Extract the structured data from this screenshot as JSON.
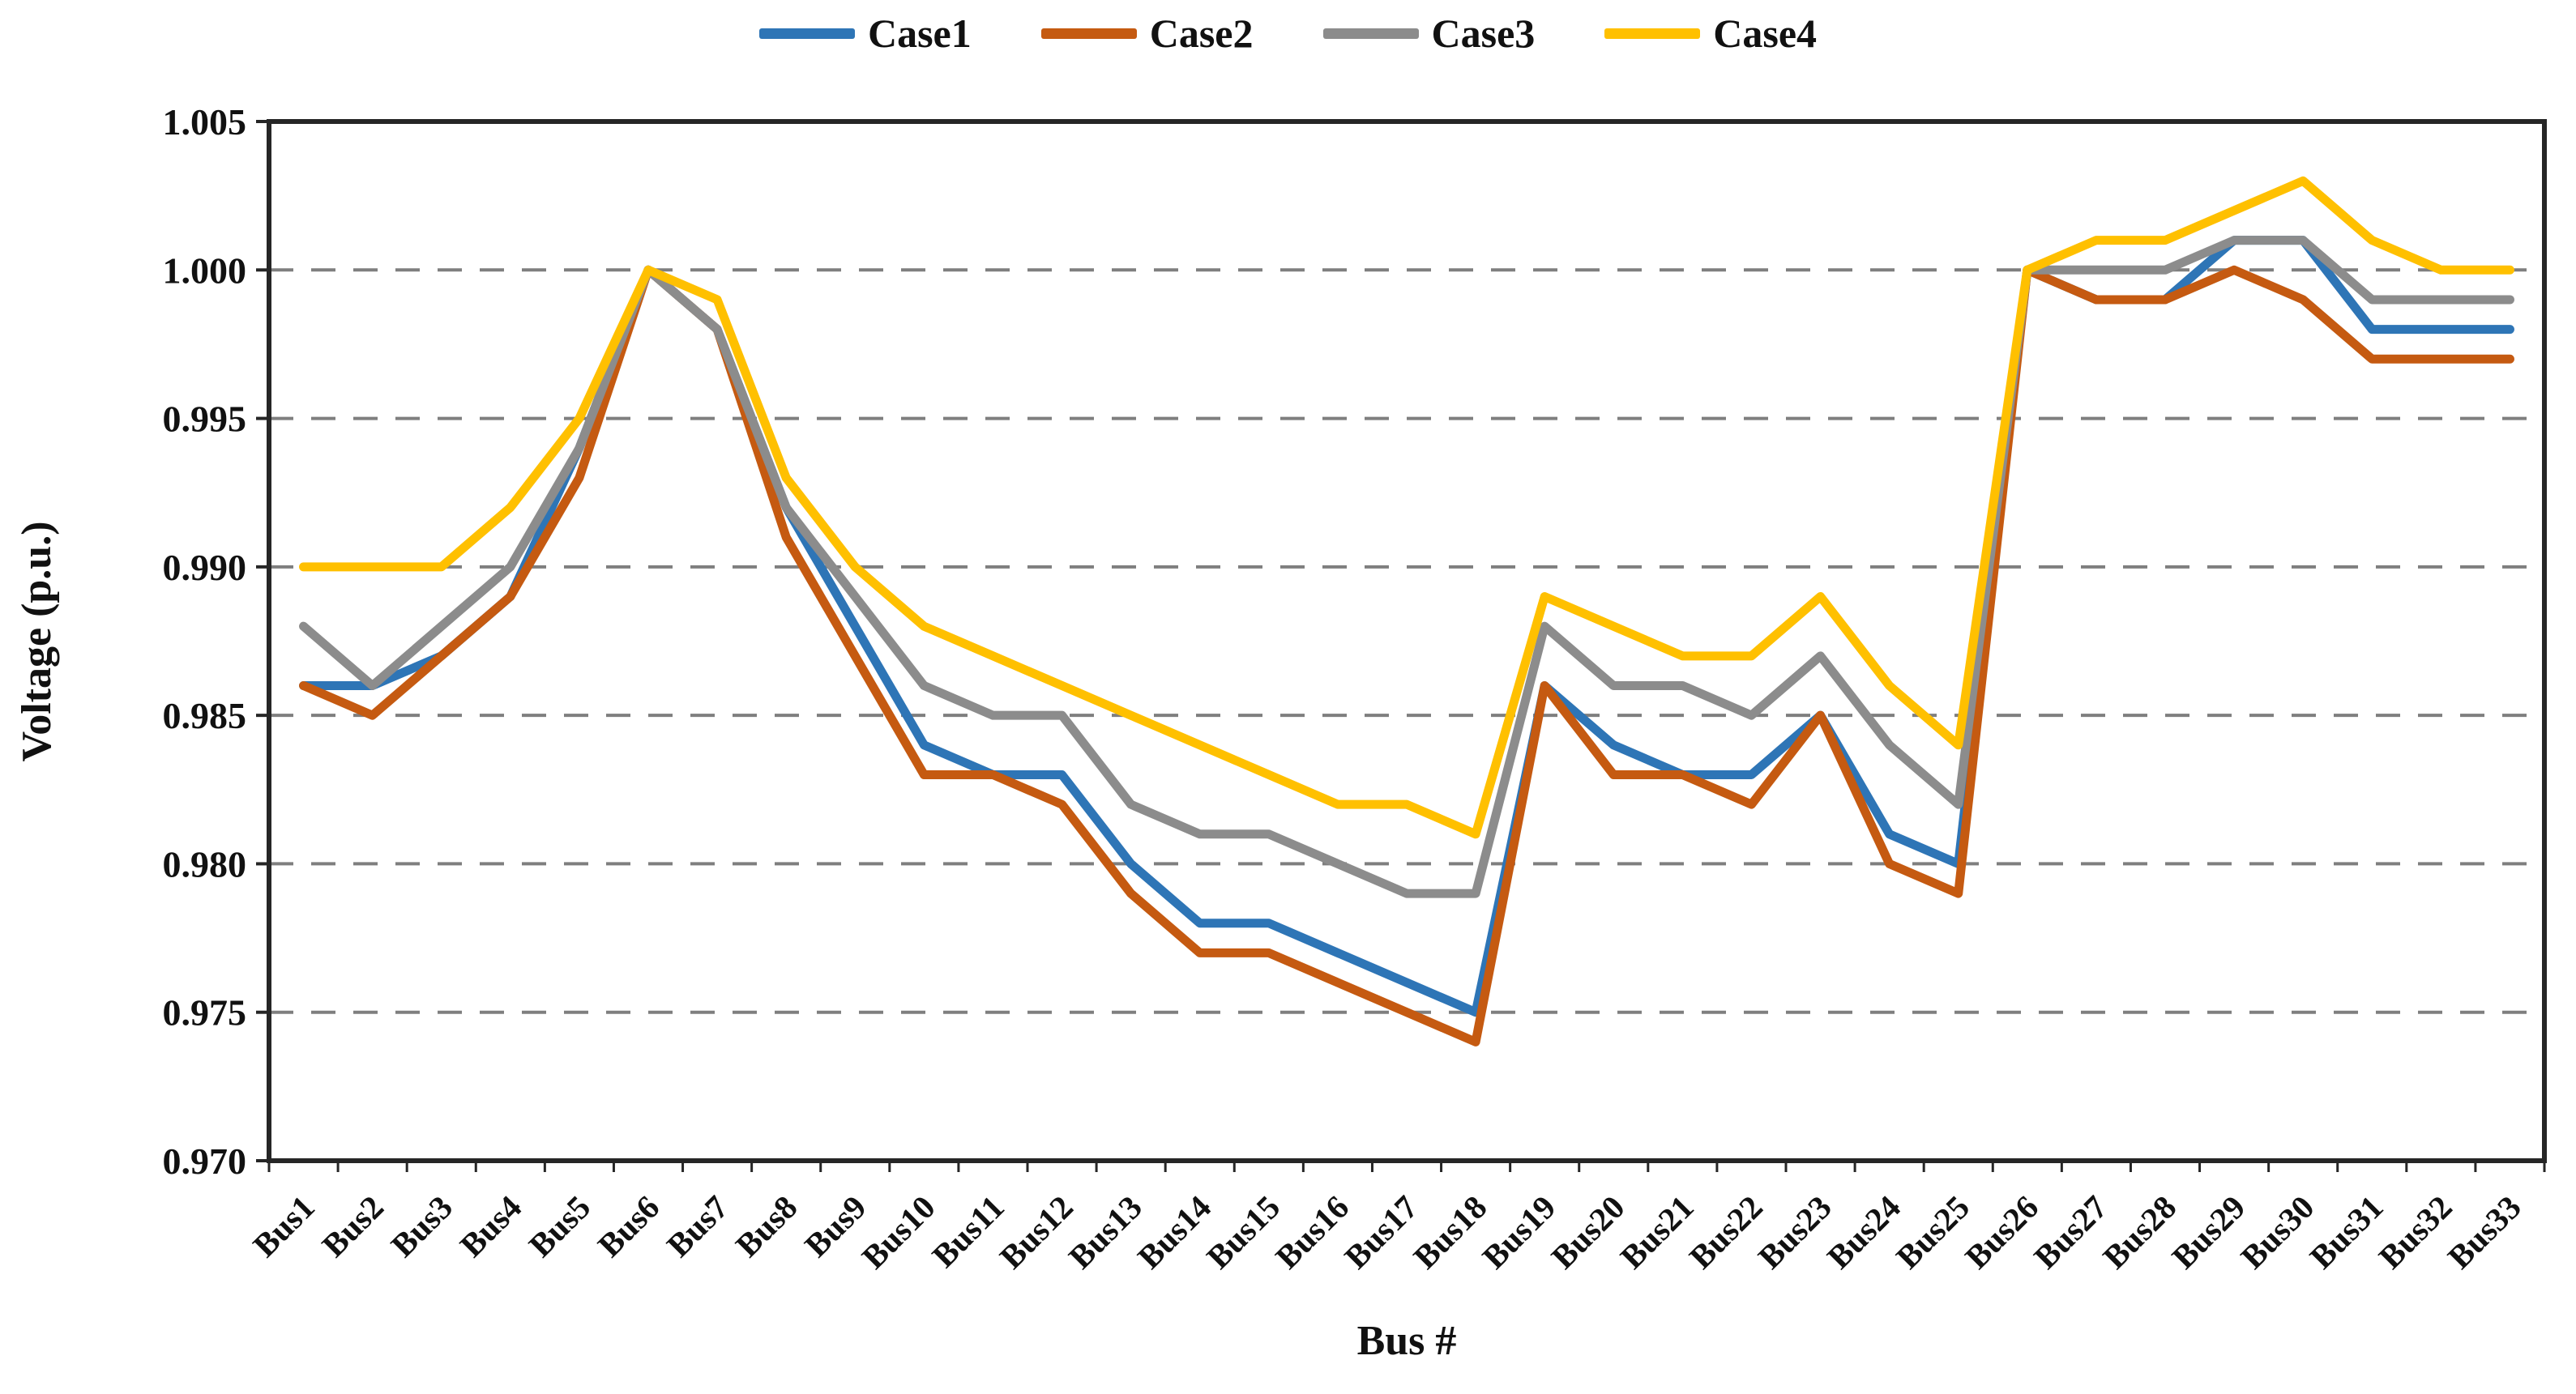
{
  "chart_data": {
    "type": "line",
    "title": "",
    "xlabel": "Bus #",
    "ylabel": "Voltage (p.u.)",
    "ylim": [
      0.97,
      1.005
    ],
    "ytick_labels": [
      "0.970",
      "0.975",
      "0.980",
      "0.985",
      "0.990",
      "0.995",
      "1.000",
      "1.005"
    ],
    "gridline_values": [
      0.975,
      0.98,
      0.985,
      0.99,
      0.995,
      1.0
    ],
    "grid": "horizontal-dashed",
    "legend_position": "top-center",
    "categories": [
      "Bus1",
      "Bus2",
      "Bus3",
      "Bus4",
      "Bus5",
      "Bus6",
      "Bus7",
      "Bus8",
      "Bus9",
      "Bus10",
      "Bus11",
      "Bus12",
      "Bus13",
      "Bus14",
      "Bus15",
      "Bus16",
      "Bus17",
      "Bus18",
      "Bus19",
      "Bus20",
      "Bus21",
      "Bus22",
      "Bus23",
      "Bus24",
      "Bus25",
      "Bus26",
      "Bus27",
      "Bus28",
      "Bus29",
      "Bus30",
      "Bus31",
      "Bus32",
      "Bus33"
    ],
    "series": [
      {
        "name": "Case1",
        "color": "#2E75B6",
        "values": [
          0.986,
          0.986,
          0.987,
          0.989,
          0.994,
          1.0,
          0.998,
          0.992,
          0.988,
          0.984,
          0.983,
          0.983,
          0.98,
          0.978,
          0.978,
          0.977,
          0.976,
          0.975,
          0.986,
          0.984,
          0.983,
          0.983,
          0.985,
          0.981,
          0.98,
          1.0,
          0.999,
          0.999,
          1.001,
          1.001,
          0.998,
          0.998,
          0.998
        ]
      },
      {
        "name": "Case2",
        "color": "#C55A11",
        "values": [
          0.986,
          0.985,
          0.987,
          0.989,
          0.993,
          1.0,
          0.998,
          0.991,
          0.987,
          0.983,
          0.983,
          0.982,
          0.979,
          0.977,
          0.977,
          0.976,
          0.975,
          0.974,
          0.986,
          0.983,
          0.983,
          0.982,
          0.985,
          0.98,
          0.979,
          1.0,
          0.999,
          0.999,
          1.0,
          0.999,
          0.997,
          0.997,
          0.997
        ]
      },
      {
        "name": "Case3",
        "color": "#8C8C8C",
        "values": [
          0.988,
          0.986,
          0.988,
          0.99,
          0.994,
          1.0,
          0.998,
          0.992,
          0.989,
          0.986,
          0.985,
          0.985,
          0.982,
          0.981,
          0.981,
          0.98,
          0.979,
          0.979,
          0.988,
          0.986,
          0.986,
          0.985,
          0.987,
          0.984,
          0.982,
          1.0,
          1.0,
          1.0,
          1.001,
          1.001,
          0.999,
          0.999,
          0.999
        ]
      },
      {
        "name": "Case4",
        "color": "#FFC000",
        "values": [
          0.99,
          0.99,
          0.99,
          0.992,
          0.995,
          1.0,
          0.999,
          0.993,
          0.99,
          0.988,
          0.987,
          0.986,
          0.985,
          0.984,
          0.983,
          0.982,
          0.982,
          0.981,
          0.989,
          0.988,
          0.987,
          0.987,
          0.989,
          0.986,
          0.984,
          1.0,
          1.001,
          1.001,
          1.002,
          1.003,
          1.001,
          1.0,
          1.0
        ]
      }
    ],
    "style": {
      "line_width": 11,
      "grid_color": "#7F7F7F",
      "frame_color": "#262626",
      "text_color": "#111111",
      "background": "#FFFFFF"
    }
  }
}
